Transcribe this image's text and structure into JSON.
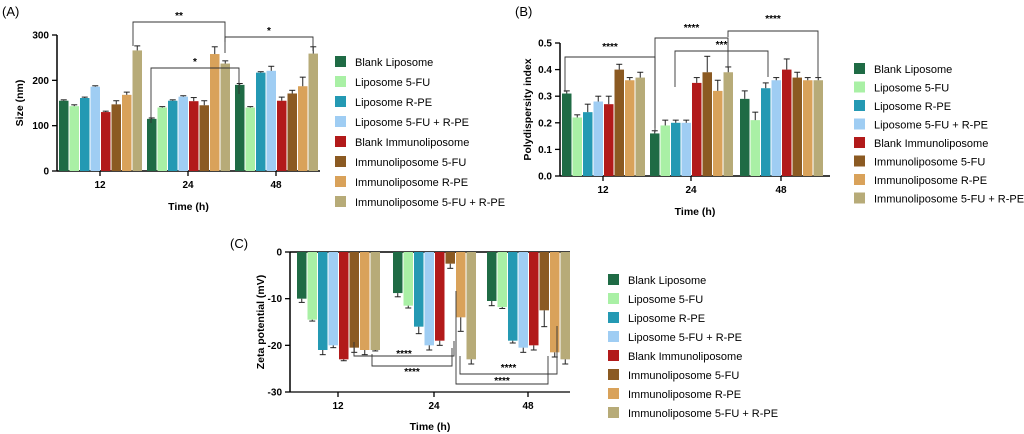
{
  "colors": [
    "#1f6b45",
    "#a9f0a5",
    "#2499b3",
    "#9fcdf3",
    "#b21a1a",
    "#8b5a22",
    "#d9a25a",
    "#b7ab78"
  ],
  "chart_data": [
    {
      "type": "bar",
      "panel": "(A)",
      "categories": [
        "12",
        "24",
        "48"
      ],
      "xlabel": "Time (h)",
      "ylabel": "Size (nm)",
      "ylim": [
        0,
        300
      ],
      "yticks": [
        "0",
        "100",
        "200",
        "300"
      ],
      "legend": "right",
      "series": [
        {
          "name": "Blank Liposome",
          "values": [
            155,
            115,
            190
          ],
          "errors": [
            2,
            2,
            3
          ]
        },
        {
          "name": "Liposome 5-FU",
          "values": [
            143,
            140,
            140
          ],
          "errors": [
            3,
            2,
            2
          ]
        },
        {
          "name": "Liposome R-PE",
          "values": [
            161,
            155,
            217
          ],
          "errors": [
            2,
            2,
            2
          ]
        },
        {
          "name": "Liposome 5-FU + R-PE",
          "values": [
            186,
            164,
            221
          ],
          "errors": [
            2,
            2,
            10
          ]
        },
        {
          "name": "Blank Immunoliposome",
          "values": [
            130,
            154,
            155
          ],
          "errors": [
            2,
            8,
            8
          ]
        },
        {
          "name": "Immunoliposome 5-FU",
          "values": [
            147,
            145,
            171
          ],
          "errors": [
            8,
            10,
            7
          ]
        },
        {
          "name": "Immunoliposome R-PE",
          "values": [
            168,
            258,
            187
          ],
          "errors": [
            6,
            16,
            20
          ]
        },
        {
          "name": "Immunoliposome 5-FU + R-PE",
          "values": [
            266,
            237,
            259
          ],
          "errors": [
            10,
            6,
            15
          ]
        }
      ],
      "significance": [
        {
          "label": "**"
        },
        {
          "label": "*"
        },
        {
          "label": "*"
        }
      ]
    },
    {
      "type": "bar",
      "panel": "(B)",
      "categories": [
        "12",
        "24",
        "48"
      ],
      "xlabel": "Time (h)",
      "ylabel": "Polydispersity index",
      "ylim": [
        0,
        0.5
      ],
      "yticks": [
        "0.0",
        "0.1",
        "0.2",
        "0.3",
        "0.4",
        "0.5"
      ],
      "legend": "right",
      "series": [
        {
          "name": "Blank Liposome",
          "values": [
            0.31,
            0.16,
            0.29
          ],
          "errors": [
            0.01,
            0.01,
            0.03
          ]
        },
        {
          "name": "Liposome 5-FU",
          "values": [
            0.22,
            0.19,
            0.21
          ],
          "errors": [
            0.01,
            0.02,
            0.03
          ]
        },
        {
          "name": "Liposome R-PE",
          "values": [
            0.24,
            0.2,
            0.33
          ],
          "errors": [
            0.03,
            0.01,
            0.02
          ]
        },
        {
          "name": "Liposome 5-FU + R-PE",
          "values": [
            0.28,
            0.2,
            0.36
          ],
          "errors": [
            0.02,
            0.01,
            0.01
          ]
        },
        {
          "name": "Blank Immunoliposome",
          "values": [
            0.27,
            0.35,
            0.4
          ],
          "errors": [
            0.03,
            0.02,
            0.04
          ]
        },
        {
          "name": "Immunoliposome 5-FU",
          "values": [
            0.4,
            0.39,
            0.37
          ],
          "errors": [
            0.02,
            0.06,
            0.02
          ]
        },
        {
          "name": "Immunoliposome R-PE",
          "values": [
            0.36,
            0.32,
            0.36
          ],
          "errors": [
            0.01,
            0.04,
            0.01
          ]
        },
        {
          "name": "Immunoliposome 5-FU + R-PE",
          "values": [
            0.37,
            0.39,
            0.36
          ],
          "errors": [
            0.02,
            0.02,
            0.01
          ]
        }
      ],
      "significance": [
        {
          "label": "****"
        },
        {
          "label": "****"
        },
        {
          "label": "****"
        },
        {
          "label": "***"
        }
      ]
    },
    {
      "type": "bar",
      "panel": "(C)",
      "categories": [
        "12",
        "24",
        "48"
      ],
      "xlabel": "Time (h)",
      "ylabel": "Zeta potential (mV)",
      "ylim": [
        -30,
        0
      ],
      "yticks": [
        "-30",
        "-20",
        "-10",
        "0"
      ],
      "legend": "right",
      "series": [
        {
          "name": "Blank Liposome",
          "values": [
            -10,
            -8.8,
            -10.5
          ],
          "errors": [
            0.8,
            0.8,
            1
          ]
        },
        {
          "name": "Liposome 5-FU",
          "values": [
            -14.5,
            -11.5,
            -11.8
          ],
          "errors": [
            0.3,
            0.5,
            0.3
          ]
        },
        {
          "name": "Liposome R-PE",
          "values": [
            -21,
            -16,
            -19
          ],
          "errors": [
            1,
            1.5,
            0.5
          ]
        },
        {
          "name": "Liposome 5-FU + R-PE",
          "values": [
            -20,
            -20,
            -20.5
          ],
          "errors": [
            0.5,
            1,
            1
          ]
        },
        {
          "name": "Blank Immunoliposome",
          "values": [
            -23,
            -19,
            -20
          ],
          "errors": [
            0.3,
            1,
            1
          ]
        },
        {
          "name": "Immunoliposome 5-FU",
          "values": [
            -20.5,
            -2.5,
            -12.5
          ],
          "errors": [
            1,
            1,
            3.5
          ]
        },
        {
          "name": "Immunoliposome R-PE",
          "values": [
            -21,
            -14,
            -21.5
          ],
          "errors": [
            1,
            3,
            1
          ]
        },
        {
          "name": "Immunoliposome 5-FU + R-PE",
          "values": [
            -21,
            -23,
            -23
          ],
          "errors": [
            0.2,
            1,
            1
          ]
        }
      ],
      "significance": [
        {
          "label": "****"
        },
        {
          "label": "****"
        },
        {
          "label": "****"
        },
        {
          "label": "****"
        }
      ]
    }
  ]
}
